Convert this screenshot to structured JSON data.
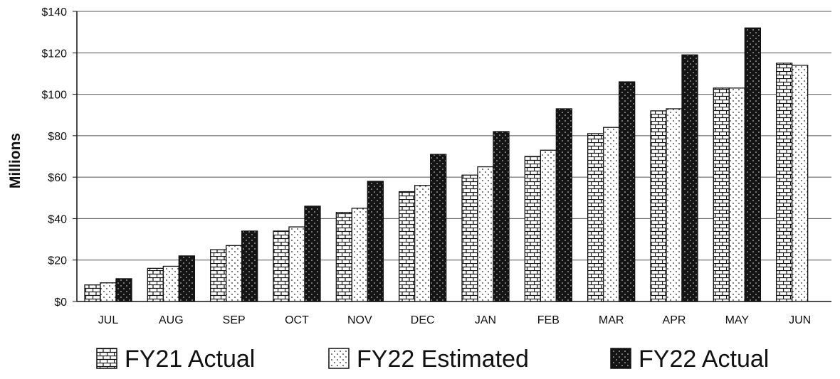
{
  "chart_data": {
    "type": "bar",
    "title": "",
    "xlabel": "",
    "ylabel": "Millions",
    "categories": [
      "JUL",
      "AUG",
      "SEP",
      "OCT",
      "NOV",
      "DEC",
      "JAN",
      "FEB",
      "MAR",
      "APR",
      "MAY",
      "JUN"
    ],
    "ylim": [
      0,
      140
    ],
    "yticks": [
      0,
      20,
      40,
      60,
      80,
      100,
      120,
      140
    ],
    "ytick_labels": [
      "$0",
      "$20",
      "$40",
      "$60",
      "$80",
      "$100",
      "$120",
      "$140"
    ],
    "grid": true,
    "legend_position": "bottom",
    "series": [
      {
        "name": "FY21 Actual",
        "pattern": "brick",
        "values": [
          8,
          16,
          25,
          34,
          43,
          53,
          61,
          70,
          81,
          92,
          103,
          115
        ]
      },
      {
        "name": "FY22 Estimated",
        "pattern": "dots-light",
        "values": [
          9,
          17,
          27,
          36,
          45,
          56,
          65,
          73,
          84,
          93,
          103,
          114
        ]
      },
      {
        "name": "FY22 Actual",
        "pattern": "dots-dark",
        "values": [
          11,
          22,
          34,
          46,
          58,
          71,
          82,
          93,
          106,
          119,
          132,
          null
        ]
      }
    ]
  }
}
